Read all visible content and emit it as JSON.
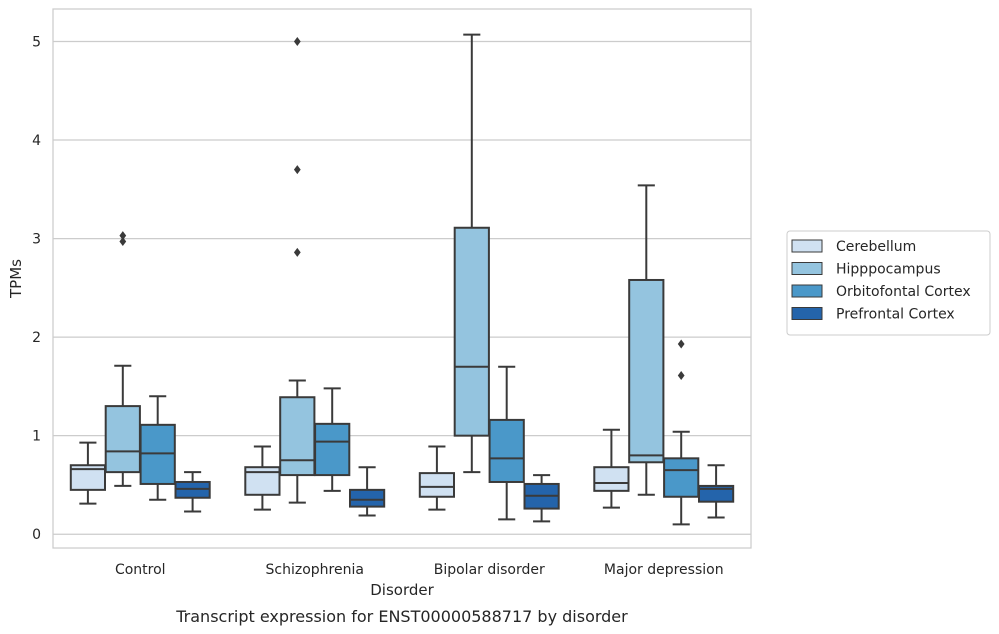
{
  "caption": "Transcript expression for ENST00000588717 by disorder",
  "chart_data": {
    "type": "box",
    "xlabel": "Disorder",
    "ylabel": "TPMs",
    "ylim": [
      -0.14,
      5.33
    ],
    "yticks": [
      0,
      1,
      2,
      3,
      4,
      5
    ],
    "grid": "horizontal",
    "legend_position": "right",
    "categories": [
      "Control",
      "Schizophrenia",
      "Bipolar disorder",
      "Major depression"
    ],
    "series": [
      {
        "name": "Cerebellum",
        "color": "#d0e1f2",
        "boxes": [
          {
            "whislo": 0.31,
            "q1": 0.45,
            "med": 0.66,
            "q3": 0.7,
            "whishi": 0.93,
            "fliers": []
          },
          {
            "whislo": 0.25,
            "q1": 0.4,
            "med": 0.63,
            "q3": 0.68,
            "whishi": 0.89,
            "fliers": []
          },
          {
            "whislo": 0.25,
            "q1": 0.38,
            "med": 0.48,
            "q3": 0.62,
            "whishi": 0.89,
            "fliers": []
          },
          {
            "whislo": 0.27,
            "q1": 0.44,
            "med": 0.52,
            "q3": 0.68,
            "whishi": 1.06,
            "fliers": []
          }
        ]
      },
      {
        "name": "Hipppocampus",
        "color": "#94c4df",
        "boxes": [
          {
            "whislo": 0.49,
            "q1": 0.63,
            "med": 0.84,
            "q3": 1.3,
            "whishi": 1.71,
            "fliers": [
              2.97,
              3.03
            ]
          },
          {
            "whislo": 0.32,
            "q1": 0.6,
            "med": 0.75,
            "q3": 1.39,
            "whishi": 1.56,
            "fliers": [
              2.86,
              3.7,
              5.0
            ]
          },
          {
            "whislo": 0.63,
            "q1": 1.0,
            "med": 1.7,
            "q3": 3.11,
            "whishi": 5.07,
            "fliers": []
          },
          {
            "whislo": 0.4,
            "q1": 0.73,
            "med": 0.8,
            "q3": 2.58,
            "whishi": 3.54,
            "fliers": []
          }
        ]
      },
      {
        "name": "Orbitofontal Cortex",
        "color": "#4a98c9",
        "boxes": [
          {
            "whislo": 0.35,
            "q1": 0.51,
            "med": 0.82,
            "q3": 1.11,
            "whishi": 1.4,
            "fliers": []
          },
          {
            "whislo": 0.44,
            "q1": 0.6,
            "med": 0.94,
            "q3": 1.12,
            "whishi": 1.48,
            "fliers": []
          },
          {
            "whislo": 0.15,
            "q1": 0.53,
            "med": 0.77,
            "q3": 1.16,
            "whishi": 1.7,
            "fliers": []
          },
          {
            "whislo": 0.1,
            "q1": 0.38,
            "med": 0.65,
            "q3": 0.77,
            "whishi": 1.04,
            "fliers": [
              1.61,
              1.93
            ]
          }
        ]
      },
      {
        "name": "Prefrontal Cortex",
        "color": "#2464ab",
        "boxes": [
          {
            "whislo": 0.23,
            "q1": 0.37,
            "med": 0.46,
            "q3": 0.53,
            "whishi": 0.63,
            "fliers": []
          },
          {
            "whislo": 0.19,
            "q1": 0.28,
            "med": 0.35,
            "q3": 0.45,
            "whishi": 0.68,
            "fliers": []
          },
          {
            "whislo": 0.13,
            "q1": 0.26,
            "med": 0.39,
            "q3": 0.51,
            "whishi": 0.6,
            "fliers": []
          },
          {
            "whislo": 0.17,
            "q1": 0.33,
            "med": 0.46,
            "q3": 0.49,
            "whishi": 0.7,
            "fliers": []
          }
        ]
      }
    ]
  }
}
